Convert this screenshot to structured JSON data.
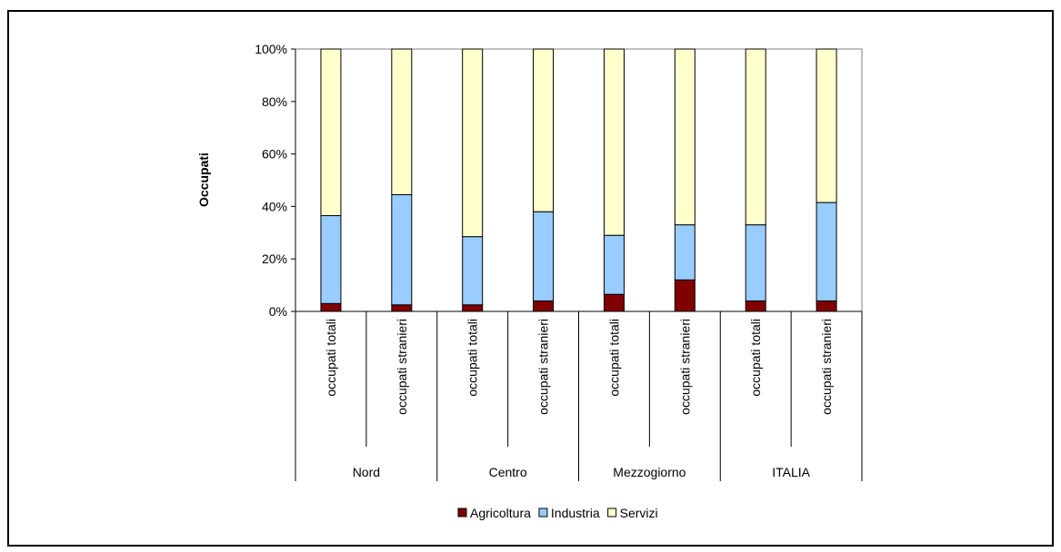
{
  "chart_data": {
    "type": "bar",
    "stacked": true,
    "normalized_percent": true,
    "ylabel": "Occupati",
    "xlabel": "",
    "ylim": [
      0,
      100
    ],
    "y_ticks": [
      "0%",
      "20%",
      "40%",
      "60%",
      "80%",
      "100%"
    ],
    "groups": [
      "Nord",
      "Centro",
      "Mezzogiorno",
      "ITALIA"
    ],
    "categories": [
      "occupati totali",
      "occupati stranieri",
      "occupati totali",
      "occupati stranieri",
      "occupati totali",
      "occupati stranieri",
      "occupati totali",
      "occupati stranieri"
    ],
    "series": [
      {
        "name": "Agricoltura",
        "color": "#800000",
        "values": [
          3,
          2.5,
          2.5,
          4,
          6.5,
          12,
          4,
          4
        ]
      },
      {
        "name": "Industria",
        "color": "#99ccff",
        "values": [
          33.5,
          42,
          26,
          34,
          22.5,
          21,
          29,
          37.5
        ]
      },
      {
        "name": "Servizi",
        "color": "#ffffcc",
        "values": [
          63.5,
          55.5,
          71.5,
          62,
          71,
          67,
          67,
          58.5
        ]
      }
    ],
    "grid": false,
    "legend_position": "bottom"
  }
}
